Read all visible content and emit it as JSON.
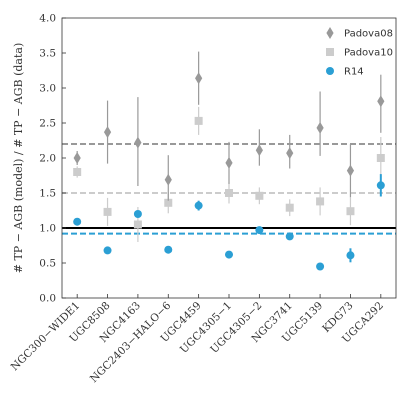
{
  "chart_data": {
    "type": "scatter",
    "ylabel": "# TP − AGB (model) / # TP − AGB (data)",
    "ylim": [
      0.0,
      4.0
    ],
    "yticks": [
      "0.0",
      "0.5",
      "1.0",
      "1.5",
      "2.0",
      "2.5",
      "3.0",
      "3.5",
      "4.0"
    ],
    "categories": [
      "NGC300−WIDE1",
      "UGC8508",
      "NGC4163",
      "NGC2403−HALO−6",
      "UGC4459",
      "UGC4305−1",
      "UGC4305−2",
      "NGC3741",
      "UGC5139",
      "KDG73",
      "UGCA292"
    ],
    "legend_position": "top-right",
    "series": [
      {
        "name": "Padova08",
        "color": "#999999",
        "marker": "diamond",
        "values": [
          2.0,
          2.37,
          2.22,
          1.69,
          3.14,
          1.93,
          2.11,
          2.07,
          2.43,
          1.82,
          2.81
        ],
        "err_low": [
          0.1,
          0.45,
          0.62,
          0.3,
          0.38,
          0.3,
          0.22,
          0.22,
          0.4,
          0.38,
          0.45
        ],
        "err_high": [
          0.1,
          0.45,
          0.65,
          0.35,
          0.38,
          0.3,
          0.3,
          0.26,
          0.52,
          0.38,
          0.38
        ]
      },
      {
        "name": "Padova10",
        "color": "#cccccc",
        "marker": "square",
        "values": [
          1.8,
          1.23,
          1.05,
          1.36,
          2.53,
          1.5,
          1.46,
          1.29,
          1.38,
          1.24,
          2.0
        ],
        "err_low": [
          0.08,
          0.2,
          0.25,
          0.15,
          0.2,
          0.15,
          0.12,
          0.12,
          0.2,
          0.2,
          0.3
        ],
        "err_high": [
          0.08,
          0.2,
          0.25,
          0.15,
          0.2,
          0.15,
          0.12,
          0.12,
          0.2,
          0.2,
          0.3
        ]
      },
      {
        "name": "R14",
        "color": "#2b9fd4",
        "marker": "circle",
        "values": [
          1.09,
          0.68,
          1.2,
          0.69,
          1.32,
          0.62,
          0.97,
          0.88,
          0.45,
          0.61,
          1.61
        ],
        "err_low": [
          0.0,
          0.0,
          0.0,
          0.05,
          0.07,
          0.0,
          0.0,
          0.0,
          0.0,
          0.1,
          0.16
        ],
        "err_high": [
          0.0,
          0.0,
          0.0,
          0.05,
          0.07,
          0.0,
          0.0,
          0.0,
          0.0,
          0.1,
          0.16
        ]
      }
    ],
    "reference_lines": [
      {
        "value": 2.2,
        "color": "#999999",
        "style": "dashed"
      },
      {
        "value": 1.5,
        "color": "#cccccc",
        "style": "dashed"
      },
      {
        "value": 1.0,
        "color": "#000000",
        "style": "solid"
      },
      {
        "value": 0.92,
        "color": "#2b9fd4",
        "style": "dashed"
      }
    ]
  }
}
